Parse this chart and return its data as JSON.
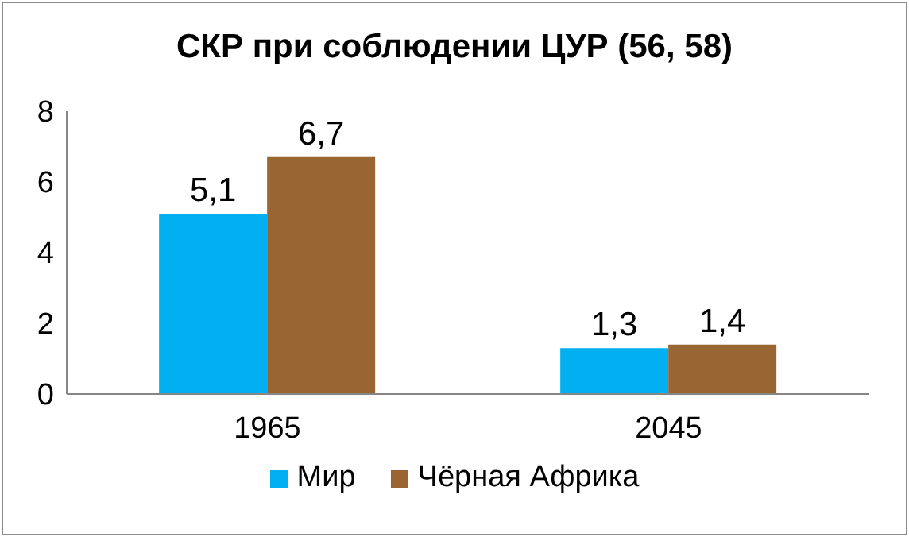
{
  "chart_data": {
    "type": "bar",
    "title": "СКР при соблюдении ЦУР (56, 58)",
    "categories": [
      "1965",
      "2045"
    ],
    "series": [
      {
        "name": "Мир",
        "color": "#00b0f0",
        "values": [
          5.1,
          1.3
        ],
        "value_labels": [
          "5,1",
          "1,3"
        ]
      },
      {
        "name": "Чёрная Африка",
        "color": "#996633",
        "values": [
          6.7,
          1.4
        ],
        "value_labels": [
          "6,7",
          "1,4"
        ]
      }
    ],
    "ylim": [
      0,
      8
    ],
    "yticks": [
      0,
      2,
      4,
      6,
      8
    ],
    "grid": false,
    "legend": "bottom"
  }
}
